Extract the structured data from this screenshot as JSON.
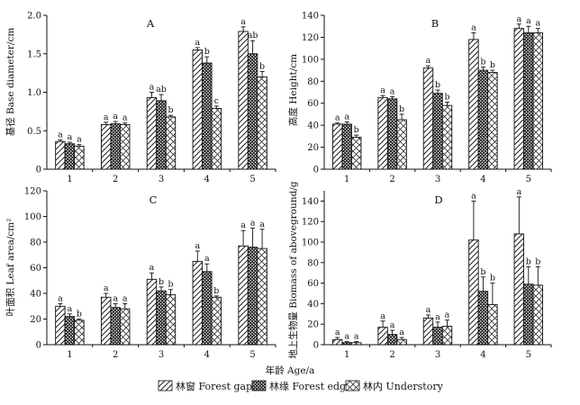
{
  "figure": {
    "xlabel": "年龄 Age/a",
    "legend": [
      {
        "key": "gap",
        "label": "林窗 Forest gap"
      },
      {
        "key": "edge",
        "label": "林缘 Forest edge"
      },
      {
        "key": "under",
        "label": "林内 Understory"
      }
    ]
  },
  "chart_data": [
    {
      "type": "bar",
      "panel": "A",
      "title": "A",
      "ylabel": "基径 Base diameter/cm",
      "ylim": [
        0,
        2.0
      ],
      "yticks": [
        "0",
        "0.5",
        "1.0",
        "1.5",
        "2.0"
      ],
      "ytick_values": [
        0,
        0.5,
        1.0,
        1.5,
        2.0
      ],
      "categories": [
        "1",
        "2",
        "3",
        "4",
        "5"
      ],
      "series": [
        {
          "name": "林窗 Forest gap",
          "values": [
            0.36,
            0.58,
            0.93,
            1.55,
            1.79
          ],
          "errors": [
            0.02,
            0.03,
            0.07,
            0.03,
            0.06
          ],
          "letters": [
            "a",
            "a",
            "a",
            "a",
            "a"
          ]
        },
        {
          "name": "林缘 Forest edge",
          "values": [
            0.33,
            0.59,
            0.89,
            1.38,
            1.5
          ],
          "errors": [
            0.02,
            0.03,
            0.08,
            0.08,
            0.17
          ],
          "letters": [
            "a",
            "a",
            "ab",
            "b",
            "ab"
          ]
        },
        {
          "name": "林内 Understory",
          "values": [
            0.3,
            0.58,
            0.68,
            0.79,
            1.2
          ],
          "errors": [
            0.02,
            0.02,
            0.02,
            0.03,
            0.07
          ],
          "letters": [
            "a",
            "a",
            "b",
            "c",
            "b"
          ]
        }
      ]
    },
    {
      "type": "bar",
      "panel": "B",
      "title": "B",
      "ylabel": "高度 Height/cm",
      "ylim": [
        0,
        140
      ],
      "yticks": [
        "0",
        "20",
        "40",
        "60",
        "80",
        "100",
        "120",
        "140"
      ],
      "ytick_values": [
        0,
        20,
        40,
        60,
        80,
        100,
        120,
        140
      ],
      "categories": [
        "1",
        "2",
        "3",
        "4",
        "5"
      ],
      "series": [
        {
          "name": "林窗 Forest gap",
          "values": [
            41,
            65,
            92,
            118,
            128
          ],
          "errors": [
            1,
            2,
            2,
            6,
            4
          ],
          "letters": [
            "a",
            "a",
            "a",
            "a",
            "a"
          ]
        },
        {
          "name": "林缘 Forest edge",
          "values": [
            41,
            64,
            69,
            90,
            124
          ],
          "errors": [
            2,
            2,
            3,
            3,
            6
          ],
          "letters": [
            "a",
            "a",
            "b",
            "b",
            "a"
          ]
        },
        {
          "name": "林内 Understory",
          "values": [
            29,
            45,
            58,
            88,
            124
          ],
          "errors": [
            2,
            5,
            3,
            2,
            4
          ],
          "letters": [
            "b",
            "b",
            "b",
            "b",
            "a"
          ]
        }
      ]
    },
    {
      "type": "bar",
      "panel": "C",
      "title": "C",
      "ylabel": "叶面积 Leaf area/cm²",
      "ylim": [
        0,
        120
      ],
      "yticks": [
        "0",
        "20",
        "40",
        "60",
        "80",
        "100",
        "120"
      ],
      "ytick_values": [
        0,
        20,
        40,
        60,
        80,
        100,
        120
      ],
      "categories": [
        "1",
        "2",
        "3",
        "4",
        "5"
      ],
      "series": [
        {
          "name": "林窗 Forest gap",
          "values": [
            30,
            37,
            51,
            65,
            77
          ],
          "errors": [
            2,
            3,
            5,
            8,
            12
          ],
          "letters": [
            "a",
            "a",
            "a",
            "a",
            "a"
          ]
        },
        {
          "name": "林缘 Forest edge",
          "values": [
            22,
            29,
            42,
            57,
            76
          ],
          "errors": [
            2,
            3,
            3,
            6,
            15
          ],
          "letters": [
            "a",
            "a",
            "b",
            "a",
            "a"
          ]
        },
        {
          "name": "林内 Understory",
          "values": [
            19,
            28,
            39,
            37,
            75
          ],
          "errors": [
            1,
            4,
            4,
            1,
            15
          ],
          "letters": [
            "b",
            "a",
            "b",
            "b",
            "a"
          ]
        }
      ]
    },
    {
      "type": "bar",
      "panel": "D",
      "title": "D",
      "ylabel": "地上生物量 Biomass of aboveground/g",
      "ylim": [
        0,
        150
      ],
      "yticks": [
        "0",
        "20",
        "40",
        "60",
        "80",
        "100",
        "120",
        "140"
      ],
      "ytick_values": [
        0,
        20,
        40,
        60,
        80,
        100,
        120,
        140
      ],
      "categories": [
        "1",
        "2",
        "3",
        "4",
        "5"
      ],
      "series": [
        {
          "name": "林窗 Forest gap",
          "values": [
            5,
            17,
            26,
            102,
            108
          ],
          "errors": [
            2,
            6,
            3,
            38,
            36
          ],
          "letters": [
            "a",
            "a",
            "a",
            "a",
            "a"
          ]
        },
        {
          "name": "林缘 Forest edge",
          "values": [
            2,
            10,
            17,
            52,
            59
          ],
          "errors": [
            1,
            4,
            5,
            14,
            17
          ],
          "letters": [
            "a",
            "a",
            "a",
            "b",
            "b"
          ]
        },
        {
          "name": "林内 Understory",
          "values": [
            2,
            5,
            18,
            39,
            58
          ],
          "errors": [
            1,
            2,
            6,
            21,
            18
          ],
          "letters": [
            "a",
            "a",
            "a",
            "b",
            "b"
          ]
        }
      ]
    }
  ]
}
